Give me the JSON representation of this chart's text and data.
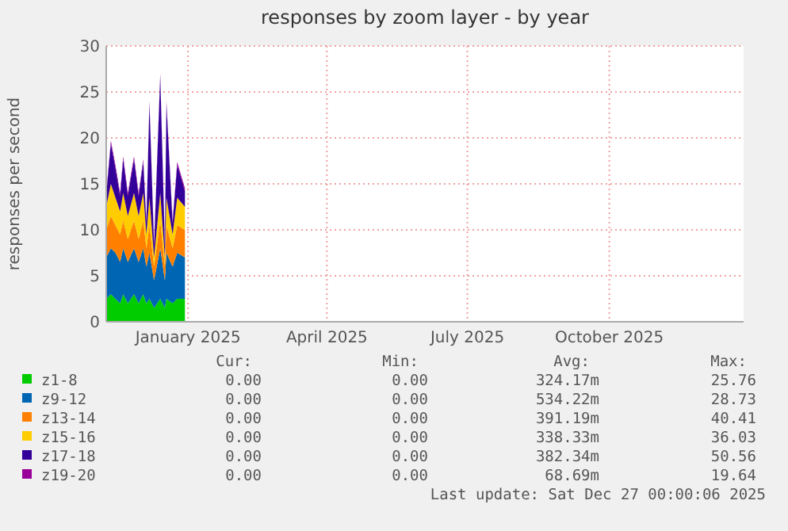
{
  "chart_data": {
    "type": "area",
    "stacked": true,
    "title": "responses by zoom layer - by year",
    "ylabel": "responses per second",
    "x": [
      "2024-11-09",
      "2024-11-12",
      "2024-11-15",
      "2024-11-18",
      "2024-11-20",
      "2024-11-23",
      "2024-11-27",
      "2024-11-30",
      "2024-12-03",
      "2024-12-05",
      "2024-12-07",
      "2024-12-10",
      "2024-12-14",
      "2024-12-17",
      "2024-12-18",
      "2024-12-22",
      "2024-12-25",
      "2024-12-30"
    ],
    "series": [
      {
        "name": "z1-8",
        "color": "#00cc00",
        "values": [
          2.5,
          3,
          2.5,
          2,
          3,
          2,
          3,
          2,
          3,
          2,
          2.5,
          1.5,
          2.5,
          1.5,
          2.5,
          2,
          2.5,
          2.5
        ]
      },
      {
        "name": "z9-12",
        "color": "#0066b3",
        "values": [
          4.5,
          5,
          5,
          4.5,
          5,
          4.5,
          5,
          4.5,
          5,
          4,
          5,
          3,
          5.5,
          3,
          5,
          4,
          5,
          4.5
        ]
      },
      {
        "name": "z13-14",
        "color": "#ff8000",
        "values": [
          3,
          3.5,
          3,
          3,
          3,
          2.5,
          3,
          2.5,
          3,
          2,
          3,
          1.5,
          3,
          1.5,
          3,
          2,
          3,
          3
        ]
      },
      {
        "name": "z15-16",
        "color": "#ffcc00",
        "values": [
          2.5,
          3.5,
          3,
          2.5,
          3,
          2.5,
          3,
          2.5,
          3,
          1.5,
          3,
          1,
          3,
          1,
          3,
          1.5,
          3,
          2.5
        ]
      },
      {
        "name": "z17-18",
        "color": "#330099",
        "values": [
          1.2,
          4.4,
          3.2,
          1.7,
          3.7,
          2.2,
          3.7,
          2.2,
          3.4,
          1.2,
          10.2,
          1.2,
          12.7,
          1.2,
          10.2,
          1.2,
          3.6,
          1.7
        ]
      },
      {
        "name": "z19-20",
        "color": "#990099",
        "values": [
          0.3,
          0.3,
          0.3,
          0.3,
          0.3,
          0.3,
          0.3,
          0.3,
          0.3,
          0.3,
          0.3,
          0.3,
          0.3,
          0.3,
          0.3,
          0.3,
          0.3,
          0.3
        ]
      }
    ],
    "xlim": [
      "2024-11-09",
      "2025-12-27"
    ],
    "xticks": [
      {
        "value": "2025-01-01",
        "label": "January 2025"
      },
      {
        "value": "2025-04-01",
        "label": "April 2025"
      },
      {
        "value": "2025-07-01",
        "label": "July 2025"
      },
      {
        "value": "2025-10-01",
        "label": "October 2025"
      }
    ],
    "ylim": [
      0,
      30
    ],
    "yticks": [
      0,
      5,
      10,
      15,
      20,
      25,
      30
    ],
    "grid": true,
    "legend": "bottom",
    "annotations": [
      "Cur:",
      "Min:",
      "Avg:",
      "Max:",
      "0.00",
      "0.00",
      "324.17m",
      "25.76",
      "0.00",
      "0.00",
      "534.22m",
      "28.73",
      "0.00",
      "0.00",
      "391.19m",
      "40.41",
      "0.00",
      "0.00",
      "338.33m",
      "36.03",
      "0.00",
      "0.00",
      "382.34m",
      "50.56",
      "0.00",
      "0.00",
      "68.69m",
      "19.64",
      "Last update: Sat Dec 27 00:00:06 2025"
    ]
  }
}
